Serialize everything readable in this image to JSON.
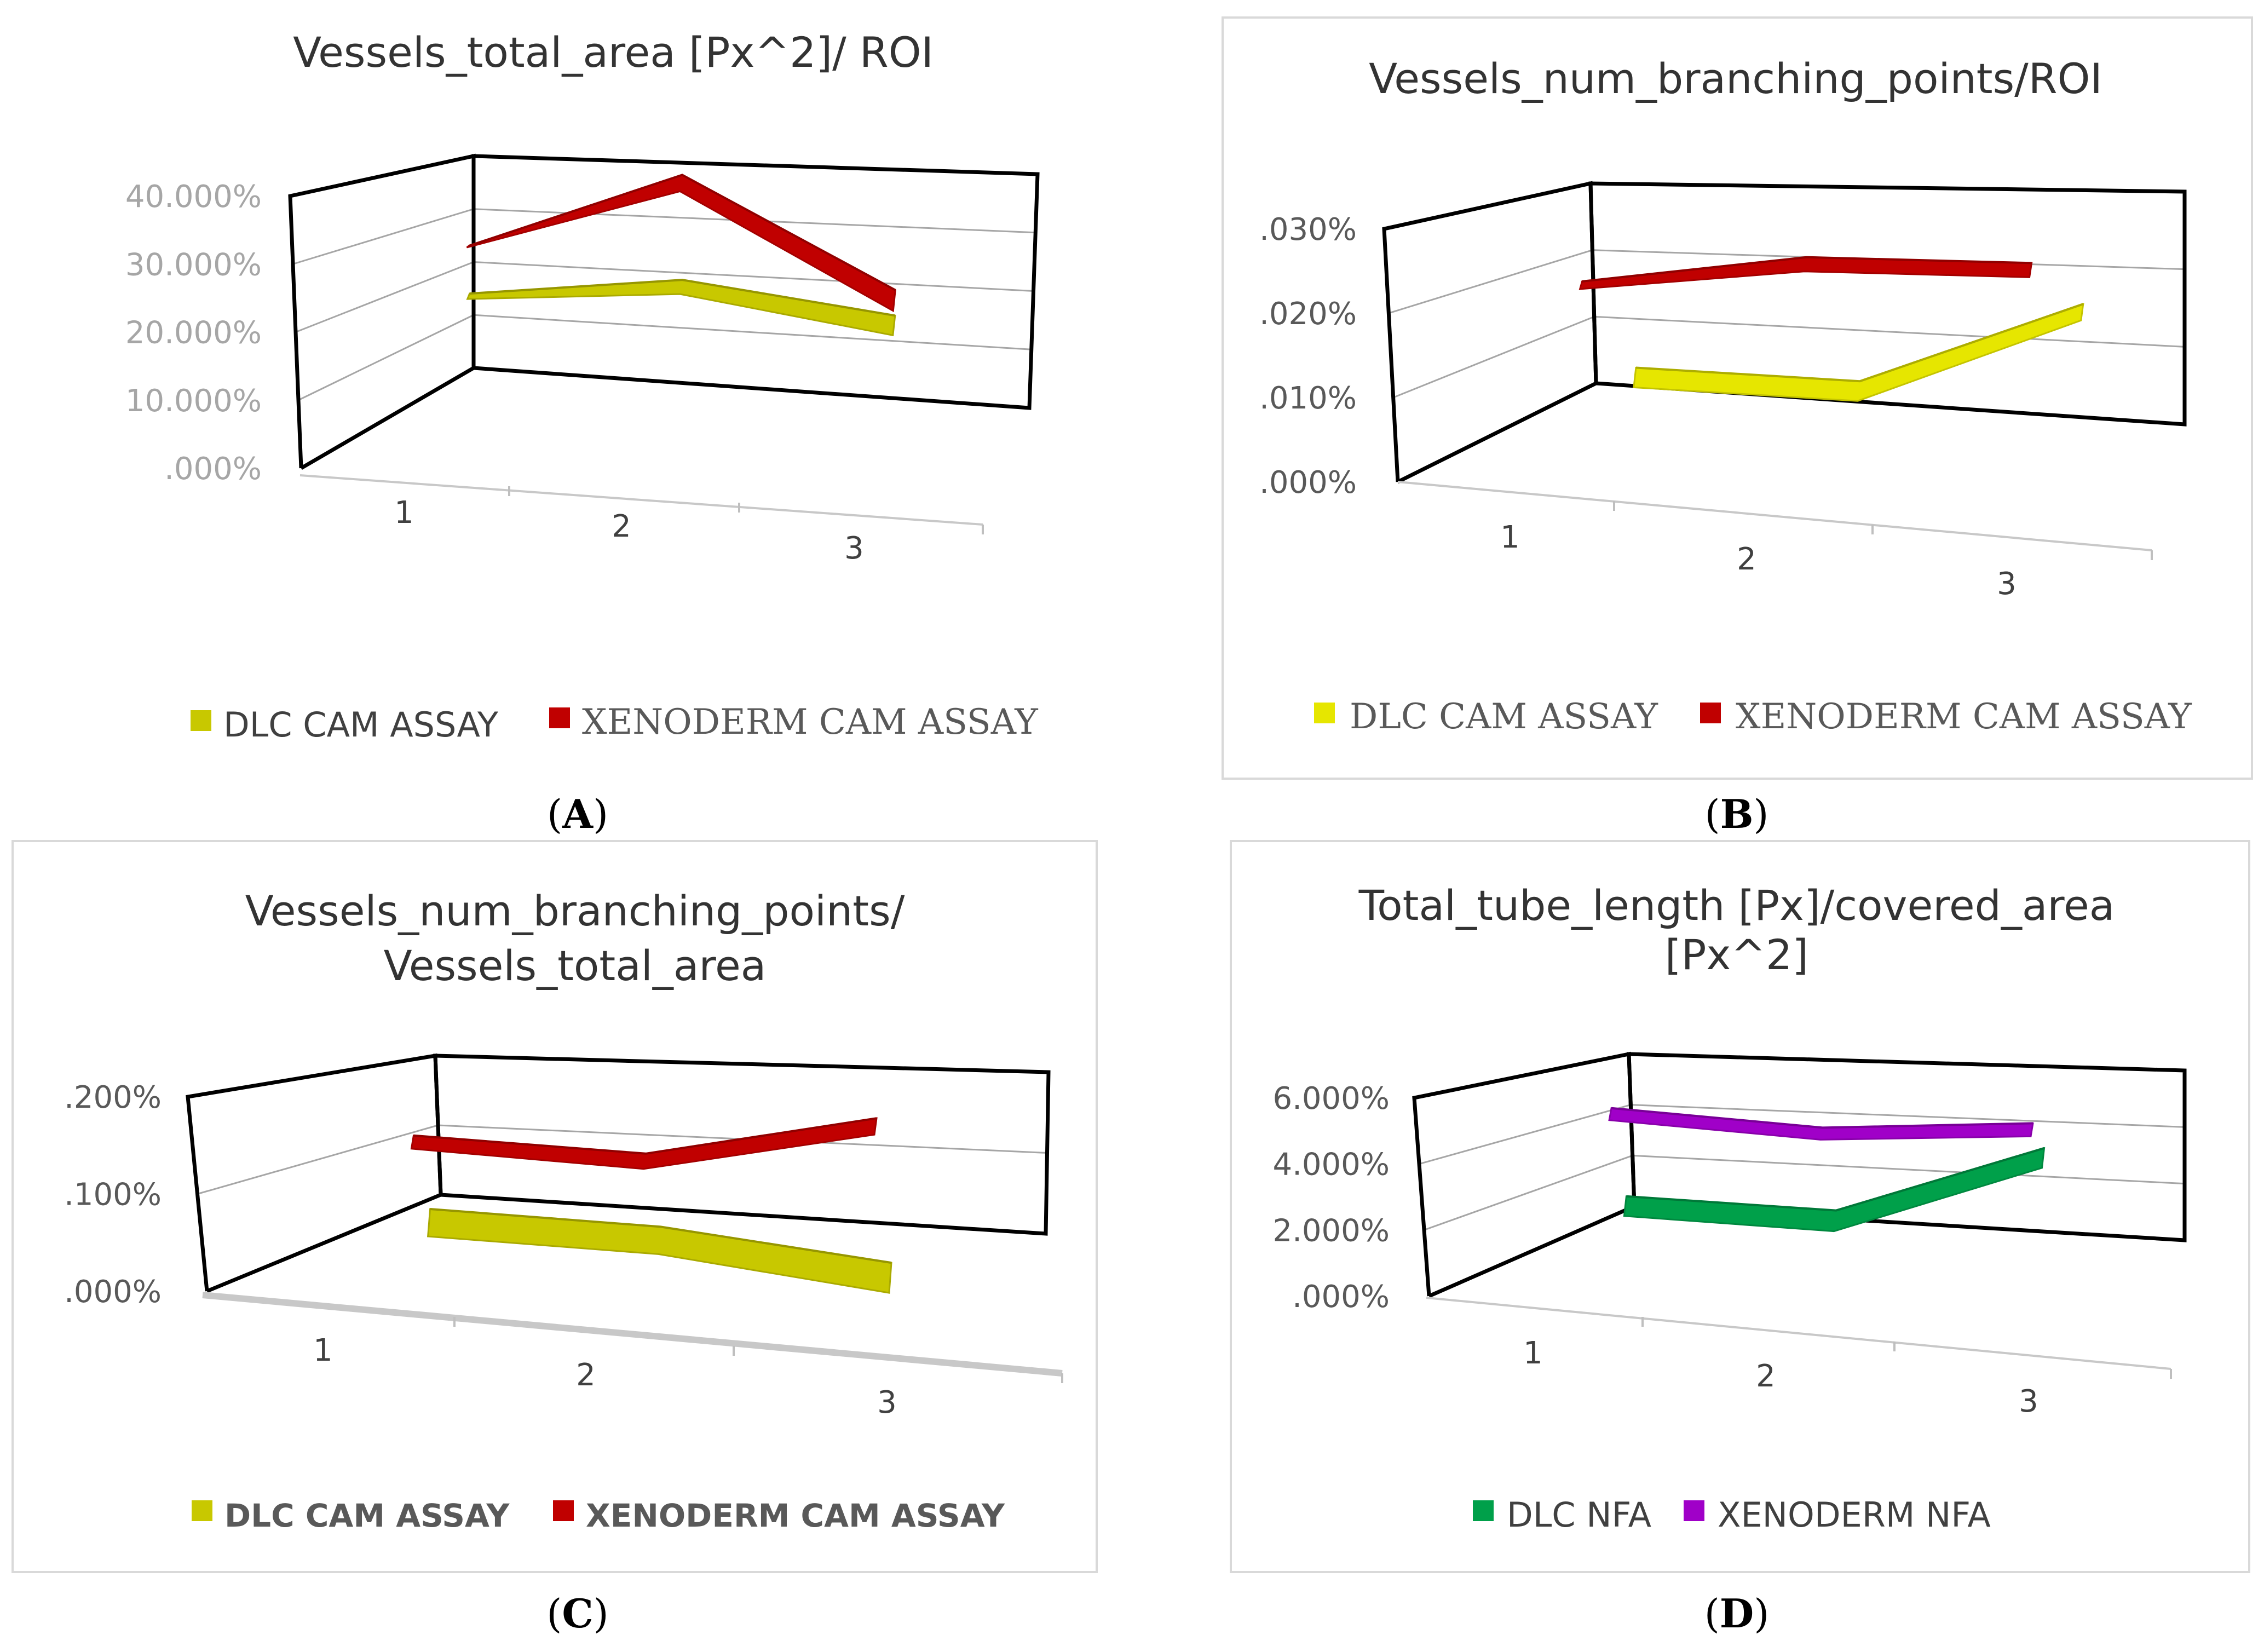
{
  "figure": {
    "panel_labels": [
      {
        "open": "(",
        "letter": "A",
        "close": ")"
      },
      {
        "open": "(",
        "letter": "B",
        "close": ")"
      },
      {
        "open": "(",
        "letter": "C",
        "close": ")"
      },
      {
        "open": "(",
        "letter": "D",
        "close": ")"
      }
    ]
  },
  "chart_data": [
    {
      "type": "line",
      "style": "3d-ribbon",
      "title": [
        "Vessels_total_area [Px^2]/ ROI"
      ],
      "categories": [
        "1",
        "2",
        "3"
      ],
      "ytick_labels": [
        ".000%",
        "10.000%",
        "20.000%",
        "30.000%",
        "40.000%"
      ],
      "ylim": [
        0,
        40
      ],
      "y_unit": "%",
      "series": [
        {
          "name": "DLC CAM ASSAY",
          "color": "#c8c800",
          "values": [
            20,
            24,
            20
          ]
        },
        {
          "name": "XENODERM CAM ASSAY",
          "color": "#c00000",
          "values": [
            28,
            41,
            24
          ]
        }
      ],
      "legend_position": "bottom"
    },
    {
      "type": "line",
      "style": "3d-ribbon",
      "title": [
        "Vessels_num_branching_points/ROI"
      ],
      "categories": [
        "1",
        "2",
        "3"
      ],
      "ytick_labels": [
        ".000%",
        ".010%",
        ".020%",
        ".030%"
      ],
      "ylim": [
        0,
        0.03
      ],
      "y_unit": "%",
      "series": [
        {
          "name": "DLC CAM ASSAY",
          "color": "#e6e600",
          "values": [
            0.005,
            0.005,
            0.0165
          ]
        },
        {
          "name": "XENODERM CAM ASSAY",
          "color": "#c00000",
          "values": [
            0.0195,
            0.0235,
            0.0235
          ]
        }
      ],
      "legend_position": "bottom"
    },
    {
      "type": "line",
      "style": "3d-ribbon",
      "title": [
        "Vessels_num_branching_points/",
        "Vessels_total_area"
      ],
      "categories": [
        "1",
        "2",
        "3"
      ],
      "ytick_labels": [
        ".000%",
        ".100%",
        ".200%"
      ],
      "ylim": [
        0,
        0.2
      ],
      "y_unit": "%",
      "series": [
        {
          "name": "DLC CAM ASSAY",
          "color": "#c8c800",
          "values": [
            0.03,
            0.025,
            0.0
          ]
        },
        {
          "name": "XENODERM CAM ASSAY",
          "color": "#c00000",
          "values": [
            0.125,
            0.115,
            0.165
          ]
        }
      ],
      "legend_position": "bottom"
    },
    {
      "type": "line",
      "style": "3d-ribbon",
      "title": [
        "Total_tube_length [Px]/covered_area",
        "[Px^2]"
      ],
      "categories": [
        "1",
        "2",
        "3"
      ],
      "ytick_labels": [
        ".000%",
        "2.000%",
        "4.000%",
        "6.000%"
      ],
      "ylim": [
        0,
        6
      ],
      "y_unit": "%",
      "series": [
        {
          "name": "DLC NFA",
          "color": "#00a04a",
          "values": [
            1.6,
            1.5,
            3.9
          ]
        },
        {
          "name": "XENODERM NFA",
          "color": "#a000c8",
          "values": [
            4.8,
            4.4,
            4.8
          ]
        }
      ],
      "legend_position": "bottom"
    }
  ]
}
